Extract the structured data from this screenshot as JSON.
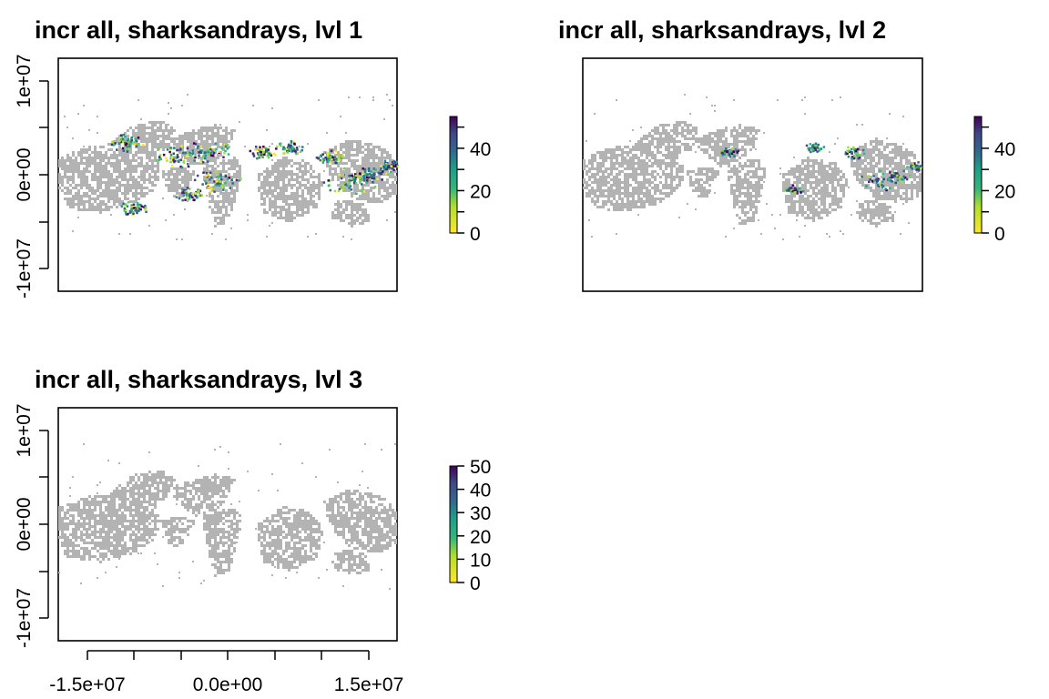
{
  "chart_data": [
    {
      "type": "heatmap",
      "title": "incr all, sharksandrays, lvl 1",
      "x_range": [
        -18000000,
        18000000
      ],
      "y_range": [
        -12500000,
        12500000
      ],
      "y_ticks": [
        -10000000,
        0,
        10000000,
        20000000
      ],
      "y_tick_labels": [
        "-1e+07",
        "0e+00",
        "1e+07"
      ],
      "x_axis_shown": false,
      "legend": {
        "position": "right",
        "ticks": [
          0,
          20,
          40
        ],
        "max": 55
      },
      "hotspot_level": "high",
      "no_data_color": "#b3b3b3"
    },
    {
      "type": "heatmap",
      "title": "incr all, sharksandrays, lvl 2",
      "x_range": [
        -18000000,
        18000000
      ],
      "y_range": [
        -12500000,
        12500000
      ],
      "y_axis_shown": false,
      "x_axis_shown": false,
      "legend": {
        "position": "right",
        "ticks": [
          0,
          20,
          40
        ],
        "max": 55
      },
      "hotspot_level": "medium",
      "no_data_color": "#b3b3b3"
    },
    {
      "type": "heatmap",
      "title": "incr all, sharksandrays, lvl 3",
      "x_range": [
        -18000000,
        18000000
      ],
      "y_range": [
        -12500000,
        12500000
      ],
      "y_tick_labels": [
        "-1e+07",
        "0e+00",
        "1e+07"
      ],
      "x_tick_labels": [
        "-1.5e+07",
        "0.0e+00",
        "1.5e+07"
      ],
      "x_ticks": [
        -15000000,
        -10000000,
        -5000000,
        0,
        5000000,
        10000000,
        15000000
      ],
      "legend": {
        "position": "right",
        "ticks": [
          0,
          10,
          20,
          30,
          40,
          50
        ],
        "max": 50
      },
      "hotspot_level": "none",
      "no_data_color": "#b3b3b3"
    }
  ],
  "colors": {
    "viridis": [
      "#fde725",
      "#b5de2b",
      "#6ece58",
      "#35b779",
      "#1f9e89",
      "#26828e",
      "#31688e",
      "#3e4989",
      "#482878",
      "#440154"
    ],
    "land_gray": "#b3b3b3"
  }
}
